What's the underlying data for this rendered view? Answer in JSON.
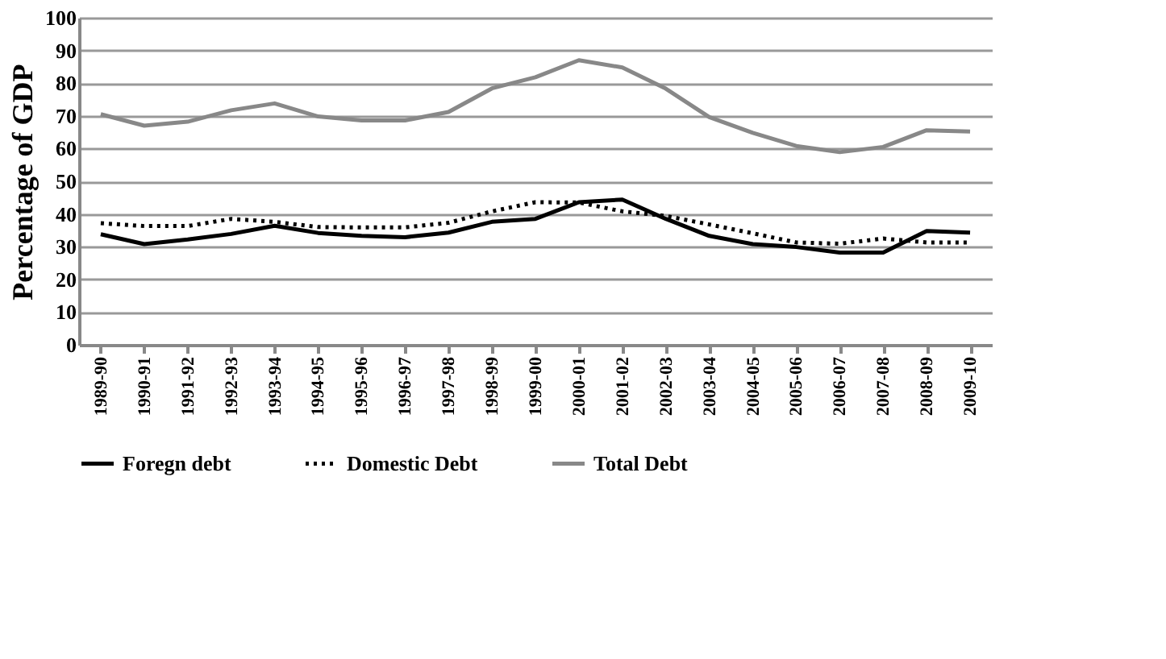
{
  "chart_data": {
    "type": "line",
    "ylabel": "Percentage of GDP",
    "categories": [
      "1989-90",
      "1990-91",
      "1991-92",
      "1992-93",
      "1993-94",
      "1994-95",
      "1995-96",
      "1996-97",
      "1997-98",
      "1998-99",
      "1999-00",
      "2000-01",
      "2001-02",
      "2002-03",
      "2003-04",
      "2004-05",
      "2005-06",
      "2006-07",
      "2007-08",
      "2008-09",
      "2009-10"
    ],
    "series": [
      {
        "name": "Foregn debt",
        "color": "#000000",
        "line_style": "solid",
        "values": [
          33.8,
          30.8,
          32.2,
          33.9,
          36.4,
          34.2,
          33.3,
          32.9,
          34.3,
          37.6,
          38.5,
          43.6,
          44.4,
          38.5,
          33.3,
          30.8,
          29.9,
          28.2,
          28.2,
          34.8,
          34.3
        ]
      },
      {
        "name": "Domestic Debt",
        "color": "#000000",
        "line_style": "dotted",
        "values": [
          37.2,
          36.3,
          36.3,
          38.5,
          37.6,
          36.0,
          35.9,
          35.9,
          37.3,
          40.8,
          43.6,
          43.5,
          40.8,
          39.4,
          36.8,
          34.1,
          31.3,
          30.9,
          32.5,
          31.3,
          31.3
        ]
      },
      {
        "name": "Total Debt",
        "color": "#888888",
        "line_style": "solid",
        "values": [
          70.5,
          67.0,
          68.2,
          71.7,
          73.8,
          69.8,
          68.6,
          68.6,
          71.2,
          78.4,
          81.8,
          87.0,
          84.8,
          78.3,
          69.6,
          64.8,
          60.8,
          58.9,
          60.5,
          65.6,
          65.2
        ]
      }
    ],
    "ylim": [
      0,
      100
    ],
    "yticks": [
      0,
      10,
      20,
      30,
      40,
      50,
      60,
      70,
      80,
      90,
      100
    ],
    "grid": "y",
    "legend": "bottom",
    "marker": "none"
  }
}
